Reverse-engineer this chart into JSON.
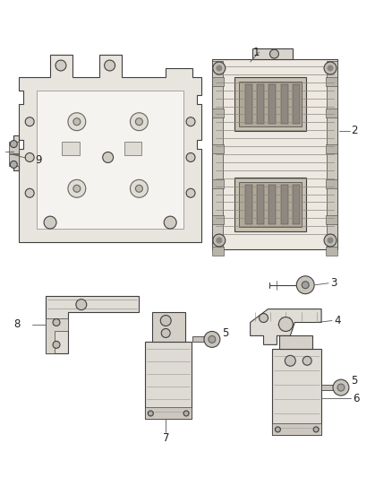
{
  "background_color": "#ffffff",
  "fig_width": 4.38,
  "fig_height": 5.33,
  "dpi": 100,
  "edge_color": "#404040",
  "face_color": "#f0eeea",
  "face_color2": "#e8e4de",
  "face_color3": "#d8d4cc",
  "label_color": "#222222",
  "label_fontsize": 8.5,
  "lw_main": 0.8,
  "lw_thin": 0.4,
  "lw_leader": 0.6
}
